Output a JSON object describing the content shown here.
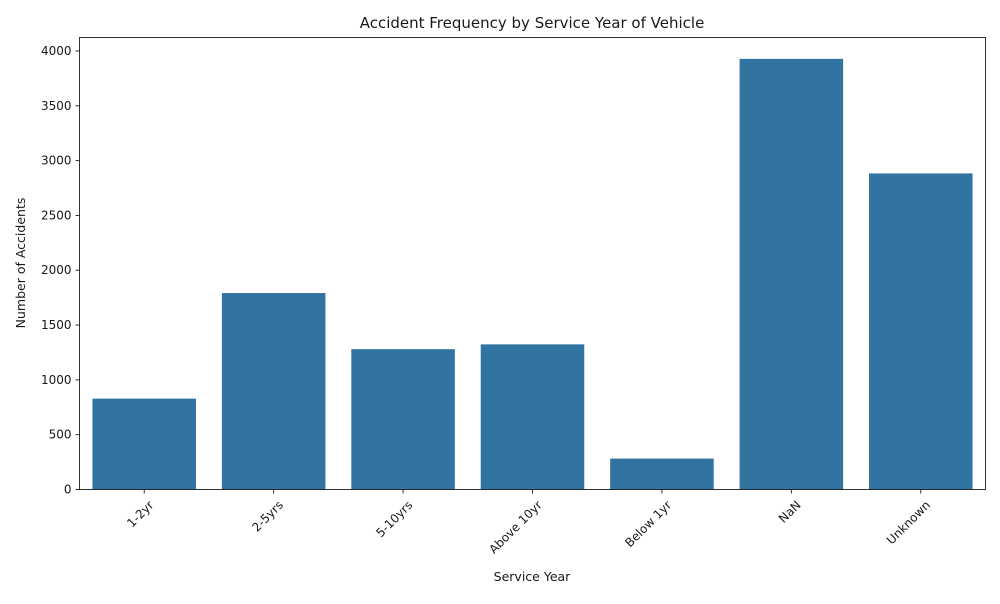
{
  "chart_data": {
    "type": "bar",
    "title": "Accident Frequency by Service Year of Vehicle",
    "xlabel": "Service Year",
    "ylabel": "Number of Accidents",
    "categories": [
      "1-2yr",
      "2-5yrs",
      "5-10yrs",
      "Above 10yr",
      "Below 1yr",
      "NaN",
      "Unknown"
    ],
    "values": [
      829,
      1792,
      1280,
      1324,
      282,
      3928,
      2883
    ],
    "ylim": [
      0,
      4123
    ],
    "yticks": [
      0,
      500,
      1000,
      1500,
      2000,
      2500,
      3000,
      3500,
      4000
    ],
    "x_tick_rotation": 45,
    "grid": false,
    "legend": "none",
    "bar_color": "#3274a1"
  }
}
